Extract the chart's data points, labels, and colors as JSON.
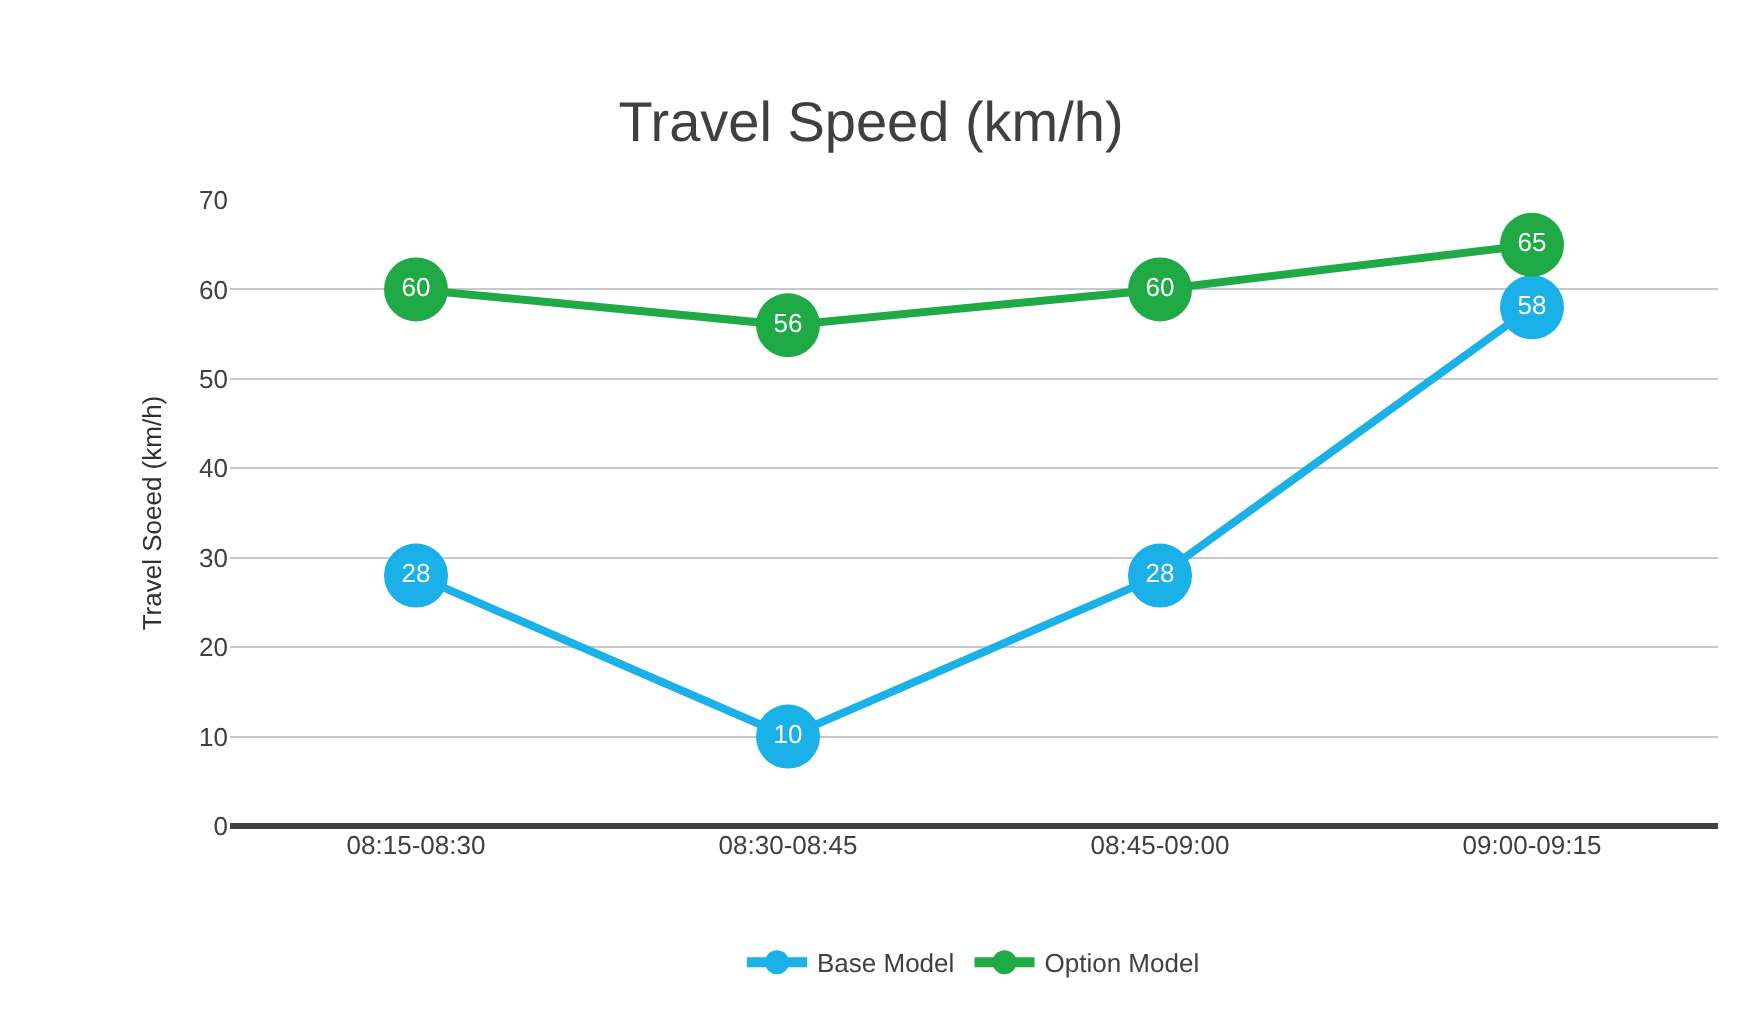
{
  "chart_data": {
    "type": "line",
    "title": "Travel Speed (km/h)",
    "ylabel": "Travel Soeed (km/h)",
    "categories": [
      "08:15-08:30",
      "08:30-08:45",
      "08:45-09:00",
      "09:00-09:15"
    ],
    "series": [
      {
        "name": "Base Model",
        "color": "#1ab0e8",
        "values": [
          28,
          10,
          28,
          58
        ]
      },
      {
        "name": "Option Model",
        "color": "#1faa45",
        "values": [
          60,
          56,
          60,
          65
        ]
      }
    ],
    "ylim": [
      0,
      70
    ],
    "yticks": [
      0,
      10,
      20,
      30,
      40,
      50,
      60,
      70
    ],
    "grid": "y",
    "legend": "bottom",
    "marker": "circle",
    "line_style": "solid",
    "data_labels": true
  }
}
